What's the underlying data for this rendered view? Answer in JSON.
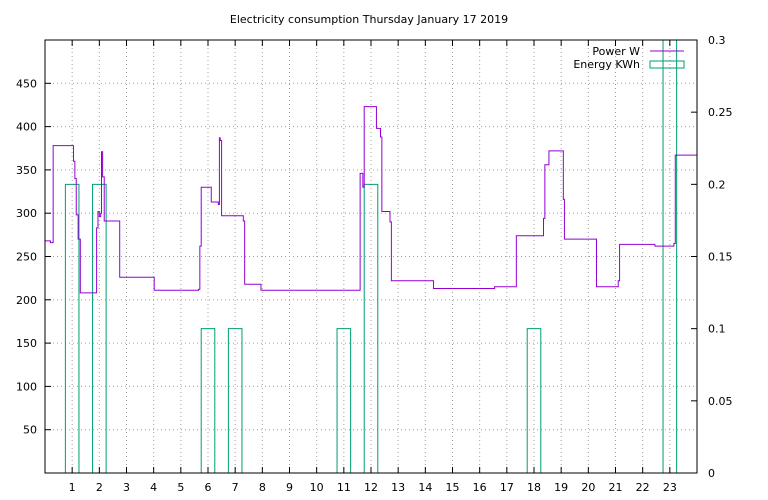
{
  "chart_data": {
    "type": "line",
    "title": "Electricity consumption Thursday January 17 2019",
    "x_ticks": [
      "1",
      "2",
      "3",
      "4",
      "5",
      "6",
      "7",
      "8",
      "9",
      "10",
      "11",
      "12",
      "13",
      "14",
      "15",
      "16",
      "17",
      "18",
      "19",
      "20",
      "21",
      "22",
      "23"
    ],
    "y_ticks": [
      "50",
      "100",
      "150",
      "200",
      "250",
      "300",
      "350",
      "400",
      "450"
    ],
    "y2_ticks": [
      "0",
      "0.05",
      "0.1",
      "0.15",
      "0.2",
      "0.25",
      "0.3"
    ],
    "xlim": [
      0,
      24
    ],
    "ylim": [
      0,
      500
    ],
    "y2lim": [
      0,
      0.3
    ],
    "grid": true,
    "legend_position": "top-right",
    "colors": {
      "power": "#9400d3",
      "energy": "#009e73"
    },
    "series": [
      {
        "name": "Power W",
        "axis": "left",
        "style": "step-line",
        "points": [
          [
            0.0,
            268
          ],
          [
            0.2,
            266
          ],
          [
            0.3,
            378
          ],
          [
            1.0,
            378
          ],
          [
            1.05,
            360
          ],
          [
            1.1,
            340
          ],
          [
            1.15,
            298
          ],
          [
            1.22,
            270
          ],
          [
            1.3,
            208
          ],
          [
            1.8,
            208
          ],
          [
            1.9,
            283
          ],
          [
            1.95,
            302
          ],
          [
            2.0,
            296
          ],
          [
            2.05,
            300
          ],
          [
            2.08,
            371
          ],
          [
            2.12,
            342
          ],
          [
            2.18,
            291
          ],
          [
            2.7,
            291
          ],
          [
            2.75,
            226
          ],
          [
            4.0,
            226
          ],
          [
            4.02,
            211
          ],
          [
            5.6,
            211
          ],
          [
            5.65,
            212
          ],
          [
            5.7,
            262
          ],
          [
            5.75,
            330
          ],
          [
            6.1,
            330
          ],
          [
            6.12,
            313
          ],
          [
            6.35,
            313
          ],
          [
            6.38,
            310
          ],
          [
            6.42,
            387
          ],
          [
            6.45,
            384
          ],
          [
            6.5,
            297
          ],
          [
            7.25,
            297
          ],
          [
            7.3,
            291
          ],
          [
            7.35,
            218
          ],
          [
            7.9,
            218
          ],
          [
            7.95,
            211
          ],
          [
            11.55,
            211
          ],
          [
            11.6,
            346
          ],
          [
            11.7,
            330
          ],
          [
            11.75,
            423
          ],
          [
            12.15,
            423
          ],
          [
            12.2,
            398
          ],
          [
            12.3,
            398
          ],
          [
            12.35,
            388
          ],
          [
            12.4,
            302
          ],
          [
            12.65,
            302
          ],
          [
            12.7,
            290
          ],
          [
            12.75,
            222
          ],
          [
            14.25,
            222
          ],
          [
            14.3,
            213
          ],
          [
            16.5,
            213
          ],
          [
            16.55,
            215
          ],
          [
            17.3,
            215
          ],
          [
            17.35,
            274
          ],
          [
            18.3,
            274
          ],
          [
            18.35,
            294
          ],
          [
            18.4,
            356
          ],
          [
            18.5,
            356
          ],
          [
            18.55,
            372
          ],
          [
            19.05,
            372
          ],
          [
            19.08,
            316
          ],
          [
            19.12,
            270
          ],
          [
            20.25,
            270
          ],
          [
            20.3,
            215
          ],
          [
            21.05,
            215
          ],
          [
            21.1,
            222
          ],
          [
            21.15,
            264
          ],
          [
            22.4,
            264
          ],
          [
            22.45,
            262
          ],
          [
            23.1,
            262
          ],
          [
            23.15,
            265
          ],
          [
            23.2,
            367
          ],
          [
            24.0,
            367
          ]
        ]
      },
      {
        "name": "Energy KWh",
        "axis": "right",
        "style": "boxes",
        "boxes": [
          [
            0.75,
            1.25,
            0.2
          ],
          [
            1.75,
            2.25,
            0.2
          ],
          [
            5.75,
            6.25,
            0.1
          ],
          [
            6.75,
            7.25,
            0.1
          ],
          [
            10.75,
            11.25,
            0.1
          ],
          [
            11.75,
            12.25,
            0.2
          ],
          [
            17.75,
            18.25,
            0.1
          ],
          [
            22.75,
            23.25,
            0.3
          ]
        ]
      }
    ]
  }
}
